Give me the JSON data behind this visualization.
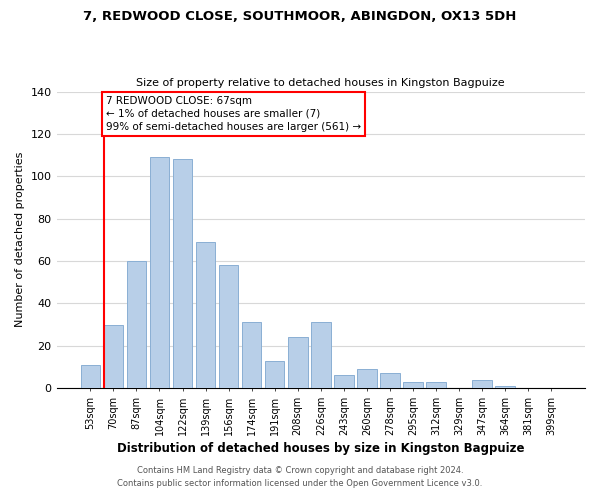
{
  "title": "7, REDWOOD CLOSE, SOUTHMOOR, ABINGDON, OX13 5DH",
  "subtitle": "Size of property relative to detached houses in Kingston Bagpuize",
  "xlabel": "Distribution of detached houses by size in Kingston Bagpuize",
  "ylabel": "Number of detached properties",
  "bar_labels": [
    "53sqm",
    "70sqm",
    "87sqm",
    "104sqm",
    "122sqm",
    "139sqm",
    "156sqm",
    "174sqm",
    "191sqm",
    "208sqm",
    "226sqm",
    "243sqm",
    "260sqm",
    "278sqm",
    "295sqm",
    "312sqm",
    "329sqm",
    "347sqm",
    "364sqm",
    "381sqm",
    "399sqm"
  ],
  "bar_heights": [
    11,
    30,
    60,
    109,
    108,
    69,
    58,
    31,
    13,
    24,
    31,
    6,
    9,
    7,
    3,
    3,
    0,
    4,
    1,
    0,
    0
  ],
  "bar_color": "#b8cfe8",
  "bar_edge_color": "#8aafd4",
  "ylim": [
    0,
    140
  ],
  "yticks": [
    0,
    20,
    40,
    60,
    80,
    100,
    120,
    140
  ],
  "annotation_box_text": "7 REDWOOD CLOSE: 67sqm\n← 1% of detached houses are smaller (7)\n99% of semi-detached houses are larger (561) →",
  "footer_line1": "Contains HM Land Registry data © Crown copyright and database right 2024.",
  "footer_line2": "Contains public sector information licensed under the Open Government Licence v3.0.",
  "background_color": "#ffffff",
  "grid_color": "#d8d8d8"
}
